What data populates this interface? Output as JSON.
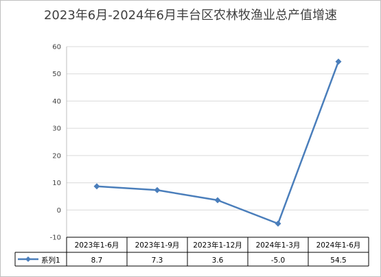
{
  "chart_data": {
    "type": "line",
    "title": "2023年6月-2024年6月丰台区农林牧渔业总产值增速",
    "categories": [
      "2023年1-6月",
      "2023年1-9月",
      "2023年1-12月",
      "2024年1-3月",
      "2024年1-6月"
    ],
    "series": [
      {
        "name": "系列1",
        "values": [
          8.7,
          7.3,
          3.6,
          -5.0,
          54.5
        ],
        "labels": [
          "8.7",
          "7.3",
          "3.6",
          "-5.0",
          "54.5"
        ],
        "color": "#4a7ebb"
      }
    ],
    "yticks": [
      "60",
      "50",
      "40",
      "30",
      "20",
      "10",
      "0",
      "-10"
    ],
    "ylim": [
      -10,
      60
    ],
    "grid": true,
    "legend": "data-table"
  }
}
